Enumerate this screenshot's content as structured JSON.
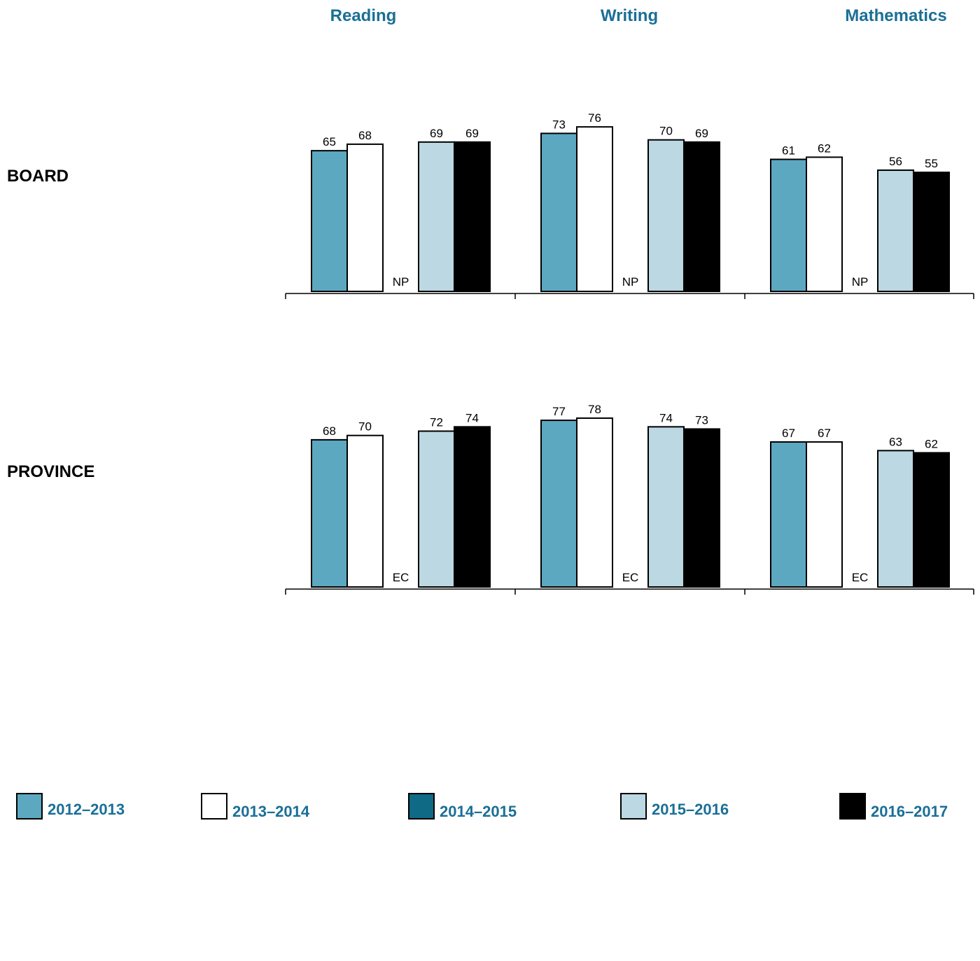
{
  "chart_data": {
    "type": "bar",
    "subjects": [
      "Reading",
      "Writing",
      "Mathematics"
    ],
    "series": [
      {
        "name": "2012–2013",
        "color": "#5da8c1"
      },
      {
        "name": "2013–2014",
        "color": "#ffffff"
      },
      {
        "name": "2014–2015",
        "color": "#0f6a86"
      },
      {
        "name": "2015–2016",
        "color": "#bcd8e2"
      },
      {
        "name": "2016–2017",
        "color": "#000000"
      }
    ],
    "ylim": [
      0,
      100
    ],
    "panels": [
      {
        "label": "BOARD",
        "groups": [
          {
            "values": [
              65,
              68,
              null,
              69,
              69
            ],
            "labels": [
              "65",
              "68",
              "NP",
              "69",
              "69"
            ]
          },
          {
            "values": [
              73,
              76,
              null,
              70,
              69
            ],
            "labels": [
              "73",
              "76",
              "NP",
              "70",
              "69"
            ]
          },
          {
            "values": [
              61,
              62,
              null,
              56,
              55
            ],
            "labels": [
              "61",
              "62",
              "NP",
              "56",
              "55"
            ]
          }
        ]
      },
      {
        "label": "PROVINCE",
        "groups": [
          {
            "values": [
              68,
              70,
              null,
              72,
              74
            ],
            "labels": [
              "68",
              "70",
              "EC",
              "72",
              "74"
            ]
          },
          {
            "values": [
              77,
              78,
              null,
              74,
              73
            ],
            "labels": [
              "77",
              "78",
              "EC",
              "74",
              "73"
            ]
          },
          {
            "values": [
              67,
              67,
              null,
              63,
              62
            ],
            "labels": [
              "67",
              "67",
              "EC",
              "63",
              "62"
            ]
          }
        ]
      }
    ]
  }
}
